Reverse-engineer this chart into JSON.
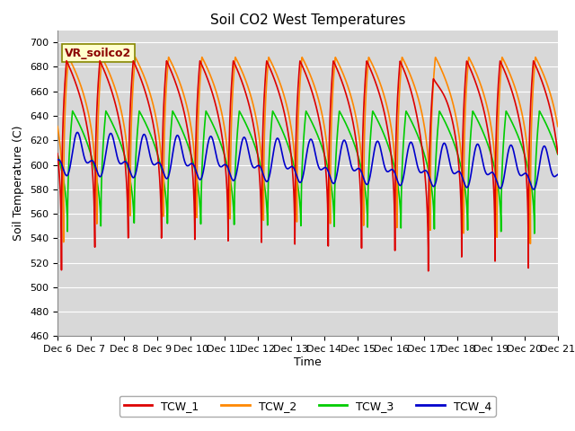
{
  "title": "Soil CO2 West Temperatures",
  "ylabel": "Soil Temperature (C)",
  "xlabel": "Time",
  "annotation": "VR_soilco2",
  "ylim": [
    460,
    710
  ],
  "yticks": [
    460,
    480,
    500,
    520,
    540,
    560,
    580,
    600,
    620,
    640,
    660,
    680,
    700
  ],
  "n_days": 15,
  "x_labels": [
    "Dec 6",
    "Dec 7",
    "Dec 8",
    "Dec 9",
    "Dec 10",
    "Dec 11",
    "Dec 12",
    "Dec 13",
    "Dec 14",
    "Dec 15",
    "Dec 16",
    "Dec 17",
    "Dec 18",
    "Dec 19",
    "Dec 20",
    "Dec 21"
  ],
  "series": {
    "TCW_1": {
      "color": "#dd0000",
      "lw": 1.2
    },
    "TCW_2": {
      "color": "#ff8800",
      "lw": 1.2
    },
    "TCW_3": {
      "color": "#00cc00",
      "lw": 1.2
    },
    "TCW_4": {
      "color": "#0000cc",
      "lw": 1.2
    }
  },
  "background_color": "#d8d8d8",
  "grid_color": "#ffffff",
  "annotation_box_color": "#ffffcc",
  "annotation_text_color": "#8b0000",
  "title_fontsize": 11,
  "label_fontsize": 9,
  "tick_fontsize": 8,
  "figsize": [
    6.4,
    4.8
  ],
  "dpi": 100
}
